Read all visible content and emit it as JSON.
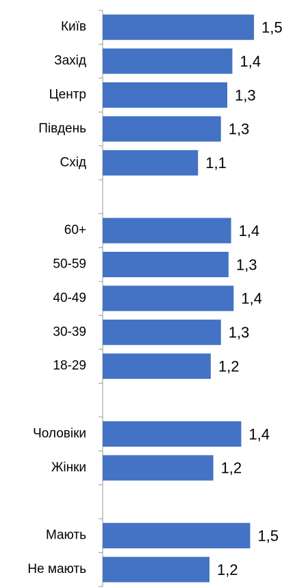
{
  "chart_data": {
    "type": "barh",
    "color": "#4472c4",
    "categories": [
      "Київ",
      "Захід",
      "Центр",
      "Південь",
      "Схід",
      null,
      "60+",
      "50-59",
      "40-49",
      "30-39",
      "18-29",
      null,
      "Чоловіки",
      "Жінки",
      null,
      "Мають",
      "Не мають"
    ],
    "values": [
      1.54,
      1.37,
      1.33,
      1.28,
      1.1,
      null,
      1.36,
      1.34,
      1.38,
      1.28,
      1.2,
      null,
      1.44,
      1.22,
      null,
      1.51,
      1.19
    ],
    "value_labels": [
      "1,5",
      "1,4",
      "1,3",
      "1,3",
      "1,1",
      null,
      "1,4",
      "1,3",
      "1,4",
      "1,3",
      "1,2",
      null,
      "1,4",
      "1,2",
      null,
      "1,5",
      "1,2"
    ],
    "xlim": [
      0.35,
      1.75
    ]
  }
}
